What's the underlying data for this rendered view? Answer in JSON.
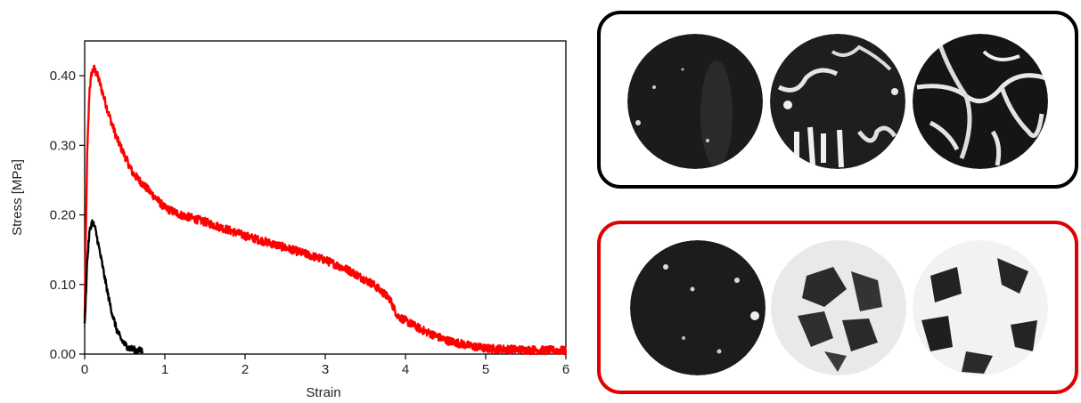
{
  "chart_data": {
    "type": "line",
    "xlabel": "Strain",
    "ylabel": "Stress [MPa]",
    "xlim": [
      0,
      6
    ],
    "ylim": [
      0,
      0.45
    ],
    "x_ticks": [
      "0",
      "1",
      "2",
      "3",
      "4",
      "5",
      "6"
    ],
    "y_ticks": [
      "0.00",
      "0.10",
      "0.20",
      "0.30",
      "0.40"
    ],
    "grid": false,
    "series": [
      {
        "color": "#ff0000",
        "x": [
          0,
          0.03,
          0.06,
          0.09,
          0.12,
          0.16,
          0.2,
          0.3,
          0.4,
          0.5,
          0.6,
          0.8,
          1.0,
          1.2,
          1.5,
          2.0,
          2.5,
          3.0,
          3.3,
          3.6,
          3.8,
          3.9,
          4.0,
          4.2,
          4.5,
          4.8,
          5.0,
          5.5,
          6.0
        ],
        "y": [
          0.05,
          0.28,
          0.38,
          0.405,
          0.41,
          0.4,
          0.385,
          0.345,
          0.31,
          0.285,
          0.26,
          0.235,
          0.21,
          0.2,
          0.19,
          0.17,
          0.153,
          0.135,
          0.12,
          0.1,
          0.08,
          0.055,
          0.048,
          0.035,
          0.02,
          0.012,
          0.008,
          0.006,
          0.005
        ],
        "noise": 0.006
      },
      {
        "color": "#000000",
        "x": [
          0,
          0.03,
          0.06,
          0.09,
          0.12,
          0.15,
          0.2,
          0.25,
          0.3,
          0.35,
          0.4,
          0.45,
          0.5,
          0.55,
          0.6,
          0.65,
          0.72
        ],
        "y": [
          0.04,
          0.13,
          0.175,
          0.19,
          0.185,
          0.17,
          0.14,
          0.11,
          0.08,
          0.055,
          0.035,
          0.022,
          0.014,
          0.009,
          0.007,
          0.005,
          0.005
        ],
        "noise": 0.005
      }
    ]
  }
}
